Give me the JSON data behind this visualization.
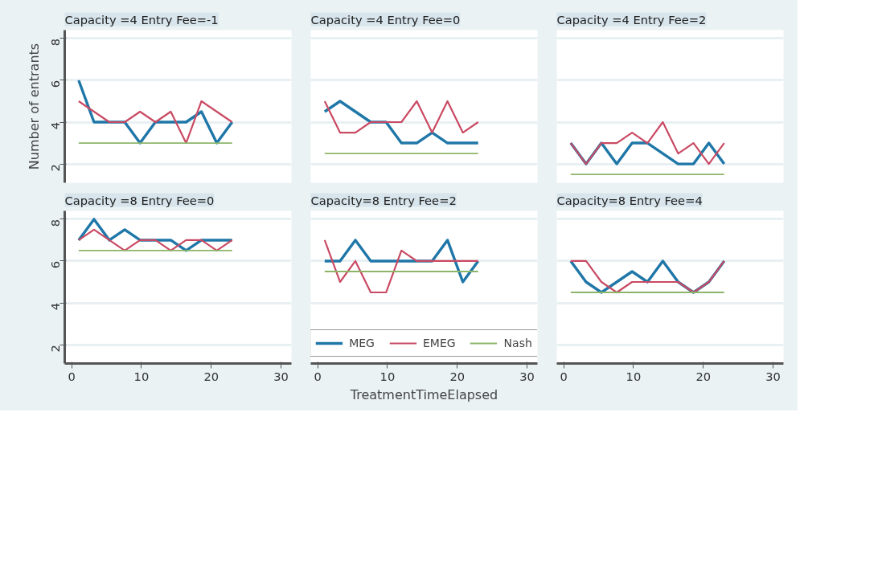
{
  "chart_data": [
    {
      "type": "line",
      "title": "Capacity =4 Entry Fee=-1",
      "ylabel": "Number of entrants",
      "x": [
        1,
        3.2,
        5.4,
        7.6,
        9.8,
        12,
        14.2,
        16.4,
        18.6,
        20.8,
        23
      ],
      "xlim": [
        -1,
        31.5
      ],
      "ylim": [
        1.1,
        8.4
      ],
      "yticks": [
        2,
        4,
        6,
        8
      ],
      "grid": "y",
      "tick_labels": "y",
      "series": [
        {
          "color": "#1f77a8",
          "values": [
            6,
            4,
            4,
            4,
            3,
            4,
            4,
            4,
            4.5,
            3,
            4
          ]
        },
        {
          "color": "#c94a63",
          "values": [
            5,
            4.5,
            4,
            4,
            4.5,
            4,
            4.5,
            3,
            5,
            4.5,
            4
          ]
        },
        {
          "color": "#8db56a",
          "values": [
            3,
            3,
            3,
            3,
            3,
            3,
            3,
            3,
            3,
            3,
            3
          ]
        }
      ]
    },
    {
      "type": "line",
      "title": "Capacity =4 Entry Fee=0",
      "x": [
        1,
        3.2,
        5.4,
        7.6,
        9.8,
        12,
        14.2,
        16.4,
        18.6,
        20.8,
        23
      ],
      "xlim": [
        -1,
        31.5
      ],
      "ylim": [
        1.1,
        8.4
      ],
      "yticks": [
        2,
        4,
        6,
        8
      ],
      "grid": "y",
      "tick_labels": false,
      "series": [
        {
          "color": "#1f77a8",
          "values": [
            4.5,
            5,
            4.5,
            4,
            4,
            3,
            3,
            3.5,
            3,
            3,
            3
          ]
        },
        {
          "color": "#c94a63",
          "values": [
            5,
            3.5,
            3.5,
            4,
            4,
            4,
            5,
            3.5,
            5,
            3.5,
            4
          ]
        },
        {
          "color": "#8db56a",
          "values": [
            2.5,
            2.5,
            2.5,
            2.5,
            2.5,
            2.5,
            2.5,
            2.5,
            2.5,
            2.5,
            2.5
          ]
        }
      ]
    },
    {
      "type": "line",
      "title": "Capacity =4 Entry Fee=2",
      "x": [
        1,
        3.2,
        5.4,
        7.6,
        9.8,
        12,
        14.2,
        16.4,
        18.6,
        20.8,
        23
      ],
      "xlim": [
        -1,
        31.5
      ],
      "ylim": [
        1.1,
        8.4
      ],
      "yticks": [
        2,
        4,
        6,
        8
      ],
      "grid": "y",
      "tick_labels": false,
      "series": [
        {
          "color": "#1f77a8",
          "values": [
            3,
            2,
            3,
            2,
            3,
            3,
            2.5,
            2,
            2,
            3,
            2
          ]
        },
        {
          "color": "#c94a63",
          "values": [
            3,
            2,
            3,
            3,
            3.5,
            3,
            4,
            2.5,
            3,
            2,
            3
          ]
        },
        {
          "color": "#8db56a",
          "values": [
            1.5,
            1.5,
            1.5,
            1.5,
            1.5,
            1.5,
            1.5,
            1.5,
            1.5,
            1.5,
            1.5
          ]
        }
      ]
    },
    {
      "type": "line",
      "title": "Capacity =8 Entry Fee=0",
      "x": [
        1,
        3.2,
        5.4,
        7.6,
        9.8,
        12,
        14.2,
        16.4,
        18.6,
        20.8,
        23
      ],
      "xlim": [
        -1,
        31.5
      ],
      "ylim": [
        1.1,
        8.4
      ],
      "xticks": [
        0,
        10,
        20,
        30
      ],
      "yticks": [
        2,
        4,
        6,
        8
      ],
      "grid": "y",
      "series": [
        {
          "color": "#1f77a8",
          "values": [
            7,
            8,
            7,
            7.5,
            7,
            7,
            7,
            6.5,
            7,
            7,
            7
          ]
        },
        {
          "color": "#c94a63",
          "values": [
            7,
            7.5,
            7,
            6.5,
            7,
            7,
            6.5,
            7,
            7,
            6.5,
            7
          ]
        },
        {
          "color": "#8db56a",
          "values": [
            6.5,
            6.5,
            6.5,
            6.5,
            6.5,
            6.5,
            6.5,
            6.5,
            6.5,
            6.5,
            6.5
          ]
        }
      ]
    },
    {
      "type": "line",
      "title": "Capacity=8 Entry Fee=2",
      "xlabel": "TreatmentTimeElapsed",
      "x": [
        1,
        3.2,
        5.4,
        7.6,
        9.8,
        12,
        14.2,
        16.4,
        18.6,
        20.8,
        23
      ],
      "xlim": [
        -1,
        31.5
      ],
      "ylim": [
        1.1,
        8.4
      ],
      "xticks": [
        0,
        10,
        20,
        30
      ],
      "yticks": [
        2,
        4,
        6,
        8
      ],
      "grid": "y",
      "tick_labels": "x",
      "legend": "bottom",
      "series": [
        {
          "name": "MEG",
          "color": "#1f77a8",
          "values": [
            6,
            6,
            7,
            6,
            6,
            6,
            6,
            6,
            7,
            5,
            6
          ]
        },
        {
          "name": "EMEG",
          "color": "#c94a63",
          "values": [
            7,
            5,
            6,
            4.5,
            4.5,
            6.5,
            6,
            6,
            6,
            6,
            6
          ]
        },
        {
          "name": "Nash",
          "color": "#8db56a",
          "values": [
            5.5,
            5.5,
            5.5,
            5.5,
            5.5,
            5.5,
            5.5,
            5.5,
            5.5,
            5.5,
            5.5
          ]
        }
      ]
    },
    {
      "type": "line",
      "title": "Capacity=8 Entry Fee=4",
      "x": [
        1,
        3.2,
        5.4,
        7.6,
        9.8,
        12,
        14.2,
        16.4,
        18.6,
        20.8,
        23
      ],
      "xlim": [
        -1,
        31.5
      ],
      "ylim": [
        1.1,
        8.4
      ],
      "xticks": [
        0,
        10,
        20,
        30
      ],
      "yticks": [
        2,
        4,
        6,
        8
      ],
      "grid": "y",
      "tick_labels": "x",
      "series": [
        {
          "color": "#1f77a8",
          "values": [
            6,
            5,
            4.5,
            5,
            5.5,
            5,
            6,
            5,
            4.5,
            5,
            6
          ]
        },
        {
          "color": "#c94a63",
          "values": [
            6,
            6,
            5,
            4.5,
            5,
            5,
            5,
            5,
            4.5,
            5,
            6
          ]
        },
        {
          "color": "#8db56a",
          "values": [
            4.5,
            4.5,
            4.5,
            4.5,
            4.5,
            4.5,
            4.5,
            4.5,
            4.5,
            4.5,
            4.5
          ]
        }
      ]
    }
  ]
}
